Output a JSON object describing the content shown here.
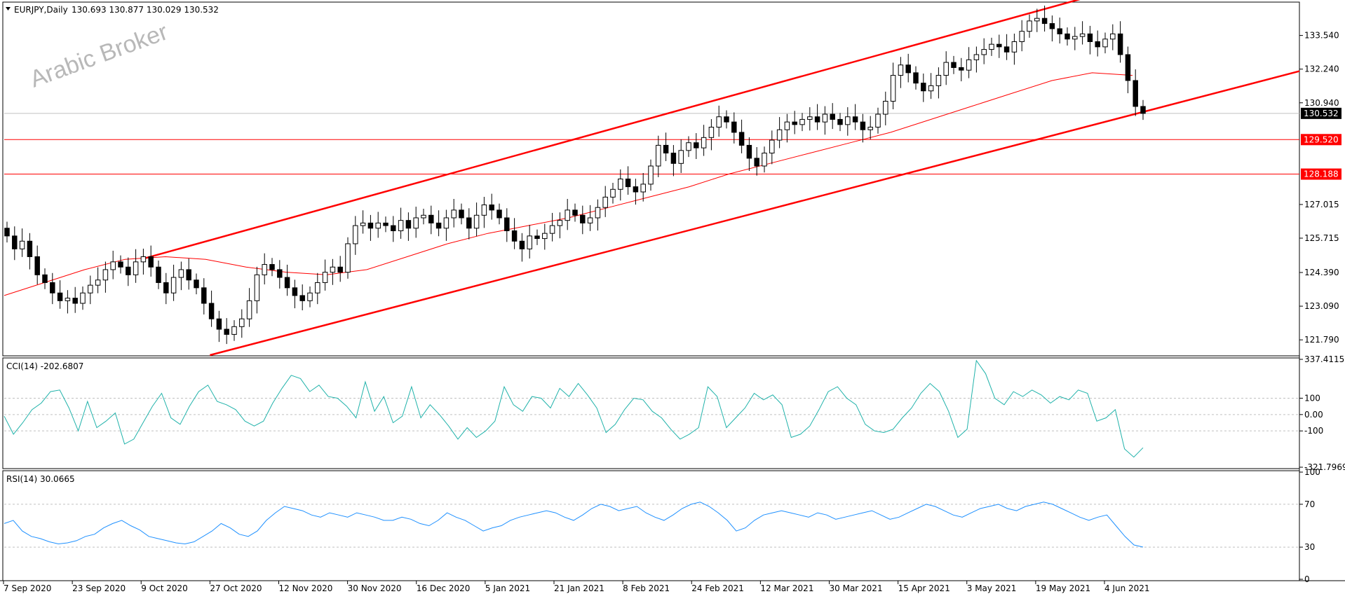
{
  "header": {
    "title": "EURJPY,Daily",
    "ohlc": "130.693 130.877 130.029 130.532"
  },
  "watermark": "Arabic Broker",
  "chart_data": {
    "type": "candlestick",
    "symbol": "EURJPY",
    "timeframe": "Daily",
    "ylim": [
      121.2,
      134.8
    ],
    "y_ticks": [
      "133.540",
      "132.240",
      "130.940",
      "127.015",
      "125.715",
      "124.390",
      "123.090",
      "121.790"
    ],
    "x_ticks": [
      "7 Sep 2020",
      "23 Sep 2020",
      "9 Oct 2020",
      "27 Oct 2020",
      "12 Nov 2020",
      "30 Nov 2020",
      "16 Dec 2020",
      "5 Jan 2021",
      "21 Jan 2021",
      "8 Feb 2021",
      "24 Feb 2021",
      "12 Mar 2021",
      "30 Mar 2021",
      "15 Apr 2021",
      "3 May 2021",
      "19 May 2021",
      "4 Jun 2021"
    ],
    "close_path": [
      125.8,
      125.3,
      125.6,
      125.0,
      124.3,
      124.0,
      123.6,
      123.3,
      123.4,
      123.2,
      123.6,
      123.9,
      124.1,
      124.5,
      124.8,
      124.6,
      124.3,
      124.8,
      125.0,
      124.6,
      124.0,
      123.6,
      124.2,
      124.5,
      124.1,
      123.8,
      123.2,
      122.6,
      122.2,
      122.0,
      122.3,
      122.6,
      123.3,
      124.3,
      124.7,
      124.5,
      124.2,
      123.8,
      123.5,
      123.3,
      123.6,
      124.0,
      124.4,
      124.6,
      124.4,
      125.5,
      126.2,
      126.3,
      126.1,
      126.3,
      126.2,
      126.0,
      126.4,
      126.1,
      126.5,
      126.6,
      126.3,
      126.1,
      126.5,
      126.8,
      126.5,
      126.1,
      126.6,
      127.0,
      126.8,
      126.5,
      126.0,
      125.6,
      125.3,
      125.8,
      125.7,
      125.9,
      126.2,
      126.4,
      126.8,
      126.6,
      126.3,
      126.5,
      126.9,
      127.3,
      127.6,
      128.0,
      127.7,
      127.5,
      127.8,
      128.5,
      129.3,
      129.0,
      128.6,
      129.1,
      129.4,
      129.2,
      129.6,
      130.0,
      130.4,
      130.2,
      129.8,
      129.3,
      128.8,
      128.5,
      129.0,
      129.5,
      129.9,
      130.2,
      130.1,
      130.3,
      130.4,
      130.2,
      130.5,
      130.3,
      130.1,
      130.4,
      130.2,
      129.9,
      130.0,
      130.5,
      131.0,
      132.0,
      132.4,
      132.1,
      131.7,
      131.4,
      131.6,
      132.0,
      132.5,
      132.3,
      132.2,
      132.6,
      132.8,
      133.0,
      133.2,
      133.1,
      132.9,
      133.3,
      133.7,
      134.1,
      134.2,
      134.0,
      133.8,
      133.6,
      133.4,
      133.5,
      133.6,
      133.3,
      133.1,
      133.4,
      133.6,
      132.8,
      131.8,
      130.8,
      130.53
    ],
    "ma_path": [
      123.5,
      124.0,
      124.5,
      124.9,
      125.0,
      124.9,
      124.6,
      124.4,
      124.3,
      124.5,
      125.0,
      125.5,
      125.9,
      126.2,
      126.5,
      126.9,
      127.3,
      127.7,
      128.2,
      128.6,
      129.0,
      129.4,
      129.8,
      130.3,
      130.8,
      131.3,
      131.8,
      132.1,
      132.0
    ],
    "indicators": [
      {
        "name": "CCI(14)",
        "value": "-202.6807",
        "ylim": [
          -321.7969,
          337.4115
        ],
        "ticks": [
          "337.4115",
          "100",
          "0.00",
          "-100",
          "-321.7969"
        ],
        "levels": [
          100,
          0,
          -100
        ],
        "path": [
          -10,
          -120,
          -50,
          30,
          70,
          140,
          150,
          40,
          -100,
          80,
          -80,
          -40,
          10,
          -180,
          -150,
          -50,
          50,
          130,
          -20,
          -60,
          50,
          140,
          180,
          80,
          60,
          30,
          -40,
          -70,
          -40,
          70,
          160,
          240,
          220,
          140,
          180,
          110,
          100,
          50,
          -20,
          200,
          20,
          110,
          -50,
          -10,
          170,
          -20,
          60,
          0,
          -70,
          -150,
          -80,
          -140,
          -100,
          -40,
          170,
          60,
          20,
          110,
          100,
          40,
          160,
          110,
          190,
          120,
          40,
          -110,
          -60,
          30,
          100,
          90,
          20,
          -20,
          -90,
          -150,
          -120,
          -80,
          170,
          110,
          -80,
          -20,
          40,
          130,
          90,
          120,
          60,
          -140,
          -120,
          -70,
          30,
          140,
          170,
          100,
          60,
          -60,
          -100,
          -110,
          -90,
          -20,
          40,
          130,
          190,
          140,
          20,
          -140,
          -90,
          330,
          250,
          100,
          60,
          140,
          110,
          150,
          120,
          70,
          110,
          90,
          150,
          130,
          -40,
          -20,
          30,
          -210,
          -260,
          -202.68
        ]
      },
      {
        "name": "RSI(14)",
        "value": "30.0665",
        "ylim": [
          0,
          100
        ],
        "ticks": [
          "100",
          "70",
          "30",
          "0"
        ],
        "levels": [
          70,
          30
        ],
        "path": [
          52,
          55,
          45,
          40,
          38,
          35,
          33,
          34,
          36,
          40,
          42,
          48,
          52,
          55,
          50,
          46,
          40,
          38,
          36,
          34,
          33,
          35,
          40,
          45,
          52,
          48,
          42,
          40,
          45,
          55,
          62,
          68,
          66,
          64,
          60,
          58,
          62,
          60,
          58,
          62,
          60,
          58,
          55,
          55,
          58,
          56,
          52,
          50,
          55,
          62,
          58,
          55,
          50,
          45,
          48,
          50,
          55,
          58,
          60,
          62,
          64,
          62,
          58,
          55,
          60,
          66,
          70,
          68,
          64,
          66,
          68,
          62,
          58,
          55,
          60,
          66,
          70,
          72,
          68,
          62,
          55,
          45,
          48,
          55,
          60,
          62,
          64,
          62,
          60,
          58,
          62,
          60,
          56,
          58,
          60,
          62,
          64,
          60,
          56,
          58,
          62,
          66,
          70,
          68,
          64,
          60,
          58,
          62,
          66,
          68,
          70,
          66,
          64,
          68,
          70,
          72,
          70,
          66,
          62,
          58,
          55,
          58,
          60,
          50,
          40,
          32,
          30.07
        ]
      }
    ],
    "price_tags": [
      {
        "value": 130.532,
        "label": "130.532",
        "style": "black"
      },
      {
        "value": 129.52,
        "label": "129.520",
        "style": "red"
      },
      {
        "value": 128.188,
        "label": "128.188",
        "style": "red"
      }
    ],
    "horizontal_lines": [
      129.52,
      128.188
    ],
    "channel_lines": [
      {
        "from": [
          "27 Oct 2020",
          121.2
        ],
        "to": [
          "4 Jun 2021",
          130.2
        ],
        "color": "#ff0000"
      },
      {
        "from": [
          "9 Oct 2020",
          124.9
        ],
        "to": [
          "4 Jun 2021",
          135.2
        ],
        "color": "#ff0000"
      }
    ],
    "colors": {
      "up": "#ffffff",
      "down": "#000000",
      "line": "#ff0000",
      "indicator": "#20b2aa",
      "rsi": "#1e90ff",
      "grid": "#c0c0c0"
    }
  }
}
